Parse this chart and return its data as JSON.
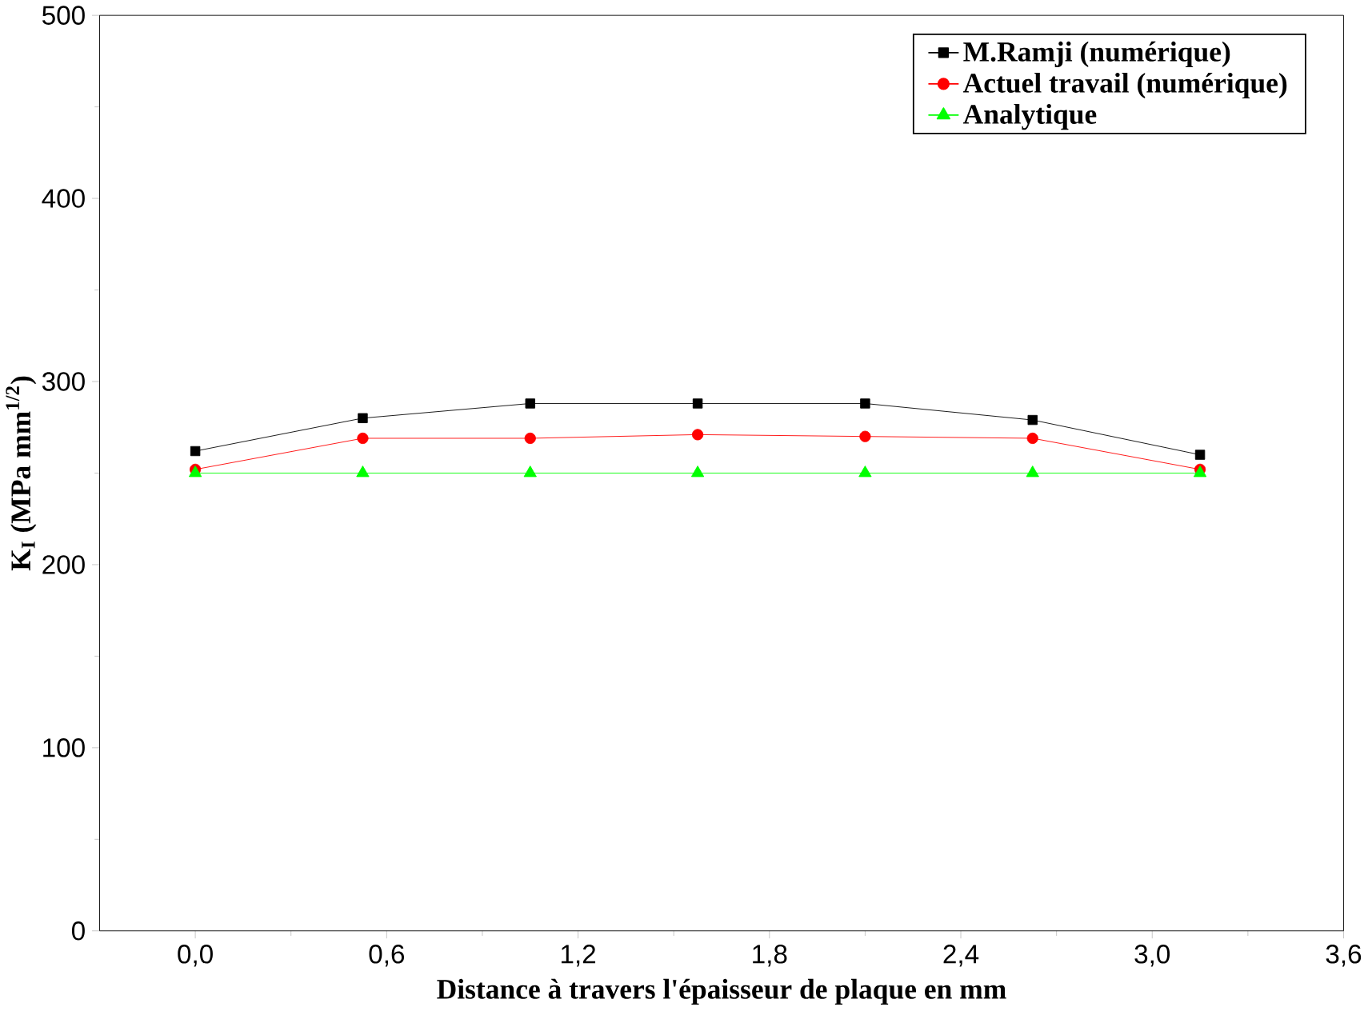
{
  "chart_data": {
    "type": "line",
    "xlabel": "Distance à travers l'épaisseur de plaque en mm",
    "ylabel": "K$_{I}$ (MPa mm$^{1/2}$)",
    "x": [
      0,
      0.525,
      1.05,
      1.575,
      2.1,
      2.625,
      3.15
    ],
    "xlim": [
      -0.3,
      3.6
    ],
    "ylim": [
      0,
      500
    ],
    "xticks": [
      {
        "value": 0,
        "label": "0,0"
      },
      {
        "value": 0.6,
        "label": "0,6"
      },
      {
        "value": 1.2,
        "label": "1,2"
      },
      {
        "value": 1.8,
        "label": "1,8"
      },
      {
        "value": 2.4,
        "label": "2,4"
      },
      {
        "value": 3.0,
        "label": "3,0"
      },
      {
        "value": 3.6,
        "label": "3,6"
      }
    ],
    "yticks": [
      0,
      100,
      200,
      300,
      400,
      500
    ],
    "series": [
      {
        "name": "M.Ramji (numérique)",
        "color": "#000000",
        "marker": "square",
        "values": [
          262,
          280,
          288,
          288,
          288,
          279,
          260
        ]
      },
      {
        "name": "Actuel travail (numérique)",
        "color": "#ff0000",
        "marker": "circle",
        "values": [
          252,
          269,
          269,
          271,
          270,
          269,
          252
        ]
      },
      {
        "name": "Analytique",
        "color": "#00ff00",
        "marker": "triangle",
        "values": [
          250,
          250,
          250,
          250,
          250,
          250,
          250
        ]
      }
    ],
    "legend": "top right",
    "grid": false,
    "line_style": "solid"
  }
}
